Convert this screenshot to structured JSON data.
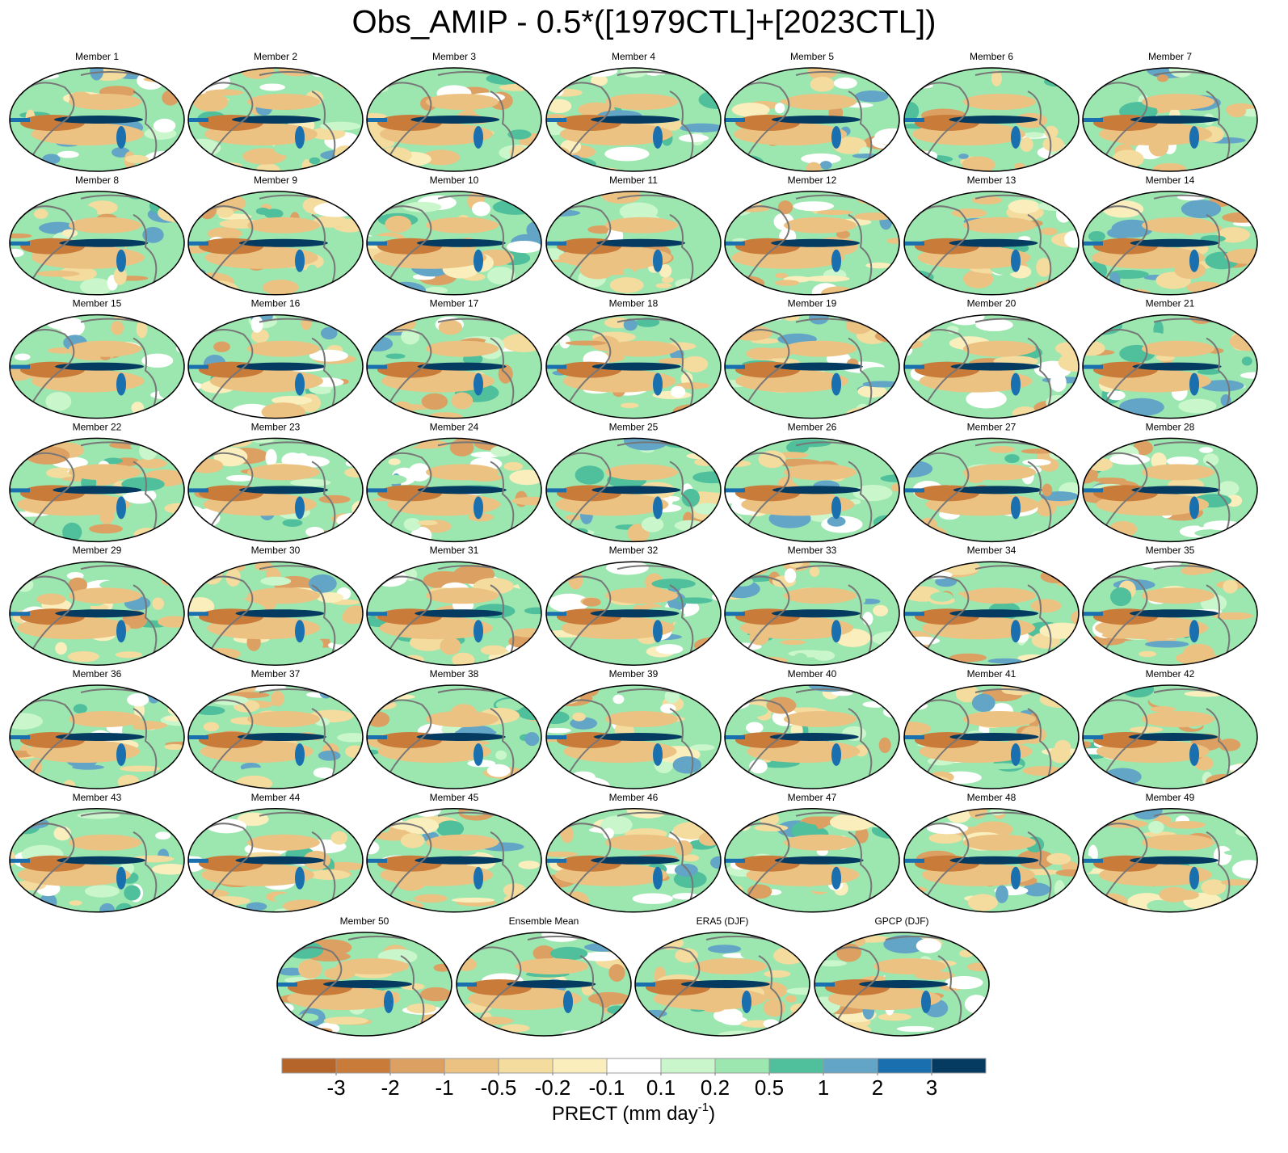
{
  "title": "Obs_AMIP - 0.5*([1979CTL]+[2023CTL])",
  "panels": [
    "Member 1",
    "Member 2",
    "Member 3",
    "Member 4",
    "Member 5",
    "Member 6",
    "Member 7",
    "Member 8",
    "Member 9",
    "Member 10",
    "Member 11",
    "Member 12",
    "Member 13",
    "Member 14",
    "Member 15",
    "Member 16",
    "Member 17",
    "Member 18",
    "Member 19",
    "Member 20",
    "Member 21",
    "Member 22",
    "Member 23",
    "Member 24",
    "Member 25",
    "Member 26",
    "Member 27",
    "Member 28",
    "Member 29",
    "Member 30",
    "Member 31",
    "Member 32",
    "Member 33",
    "Member 34",
    "Member 35",
    "Member 36",
    "Member 37",
    "Member 38",
    "Member 39",
    "Member 40",
    "Member 41",
    "Member 42",
    "Member 43",
    "Member 44",
    "Member 45",
    "Member 46",
    "Member 47",
    "Member 48",
    "Member 49",
    "Member 50",
    "Ensemble Mean",
    "ERA5 (DJF)",
    "GPCP (DJF)"
  ],
  "colorbar": {
    "colors": [
      "#b5652a",
      "#c97b3a",
      "#dca062",
      "#ecc283",
      "#f3dc9e",
      "#faefbc",
      "#ffffff",
      "#caf6cc",
      "#9ce6b0",
      "#4fbf9c",
      "#62a5c7",
      "#1a6fae",
      "#053b61"
    ],
    "ticks": [
      -3,
      -2,
      -1,
      -0.5,
      -0.2,
      -0.1,
      0.1,
      0.2,
      0.5,
      1,
      2,
      3
    ],
    "label": "PRECT (mm day",
    "label_sup": "-1",
    "label_end": ")"
  }
}
